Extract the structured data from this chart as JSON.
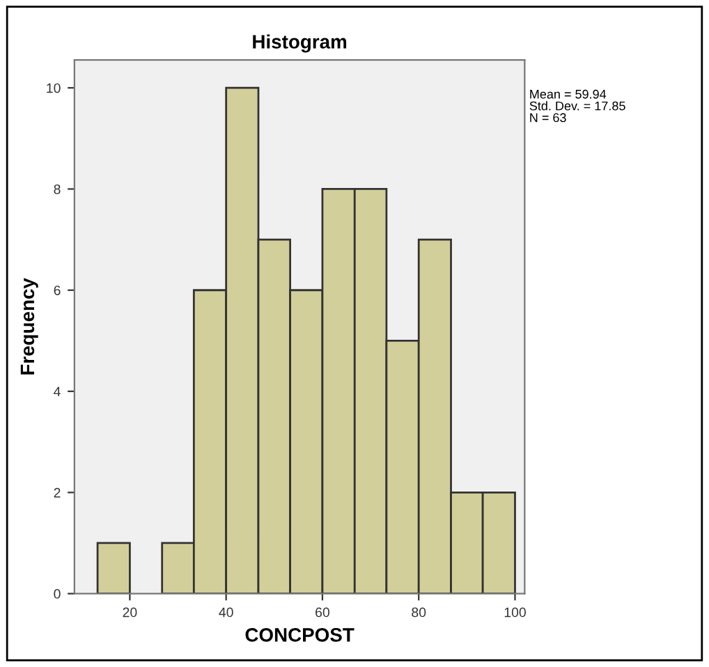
{
  "chart_data": {
    "type": "histogram",
    "title": "Histogram",
    "xlabel": "CONCPOST",
    "ylabel": "Frequency",
    "bins": [
      13.3,
      20,
      26.7,
      33.3,
      40,
      46.7,
      53.3,
      60,
      66.7,
      73.3,
      80,
      86.7,
      93.3,
      100
    ],
    "values": [
      1,
      0,
      1,
      6,
      10,
      7,
      6,
      8,
      8,
      5,
      7,
      2,
      2
    ],
    "color": "#d3cf9b",
    "xlim": [
      8.5,
      102
    ],
    "xticks": [
      20,
      40,
      60,
      80,
      100
    ],
    "ylim": [
      0,
      10.55
    ],
    "yticks": [
      0,
      2,
      4,
      6,
      8,
      10
    ],
    "annotations": [
      "Mean = 59.94",
      "Std. Dev. = 17.85",
      "N = 63"
    ],
    "grid": false,
    "legend": false
  }
}
